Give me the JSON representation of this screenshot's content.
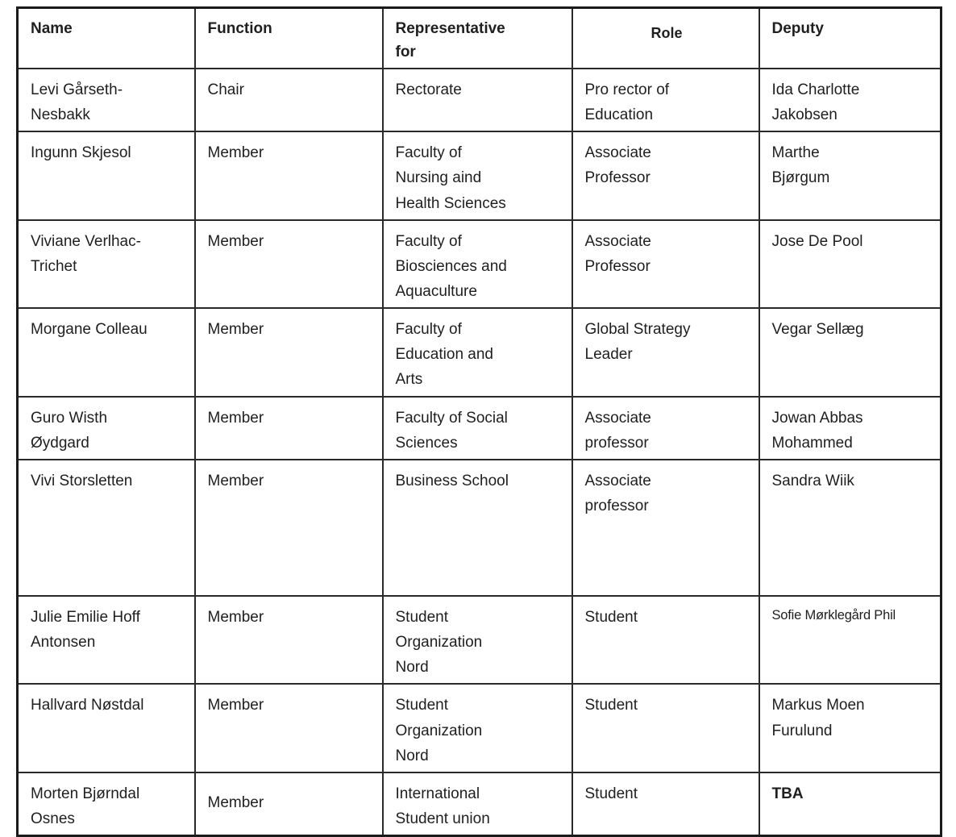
{
  "table": {
    "headers": [
      "Name",
      "Function",
      "Representative\nfor",
      "Role",
      "Deputy"
    ],
    "rows": [
      {
        "name": "Levi Gårseth-\nNesbakk",
        "function": "Chair",
        "representative_for": "Rectorate",
        "role": "Pro rector of\nEducation",
        "deputy": "Ida Charlotte\nJakobsen"
      },
      {
        "name": "Ingunn Skjesol",
        "function": "Member",
        "representative_for": "Faculty of\nNursing aind\nHealth Sciences",
        "role": "Associate\nProfessor",
        "deputy": "Marthe\nBjørgum"
      },
      {
        "name": "Viviane Verlhac-\nTrichet",
        "function": "Member",
        "representative_for": "Faculty of\nBiosciences and\nAquaculture",
        "role": "Associate\nProfessor",
        "deputy": "Jose De Pool"
      },
      {
        "name": "Morgane Colleau",
        "function": "Member",
        "representative_for": "Faculty of\nEducation and\nArts",
        "role": "Global Strategy\nLeader",
        "deputy": "Vegar Sellæg"
      },
      {
        "name": "Guro Wisth\nØydgard",
        "function": "Member",
        "representative_for": "Faculty of Social\nSciences",
        "role": "Associate\nprofessor",
        "deputy": "Jowan Abbas\nMohammed"
      },
      {
        "name": "Vivi Storsletten",
        "function": "Member",
        "representative_for": "Business School",
        "role": "Associate\nprofessor",
        "deputy": "Sandra Wiik"
      },
      {
        "name": "Julie Emilie Hoff\nAntonsen",
        "function": "Member",
        "representative_for": "Student\nOrganization\nNord",
        "role": "Student",
        "deputy": "Sofie Mørklegård Phil"
      },
      {
        "name": "Hallvard Nøstdal",
        "function": "Member",
        "representative_for": "Student\nOrganization\nNord",
        "role": "Student",
        "deputy": "Markus Moen\nFurulund"
      },
      {
        "name": "Morten Bjørndal\nOsnes",
        "function": "Member",
        "representative_for": "International\nStudent union",
        "role": "Student",
        "deputy": "TBA"
      }
    ]
  }
}
